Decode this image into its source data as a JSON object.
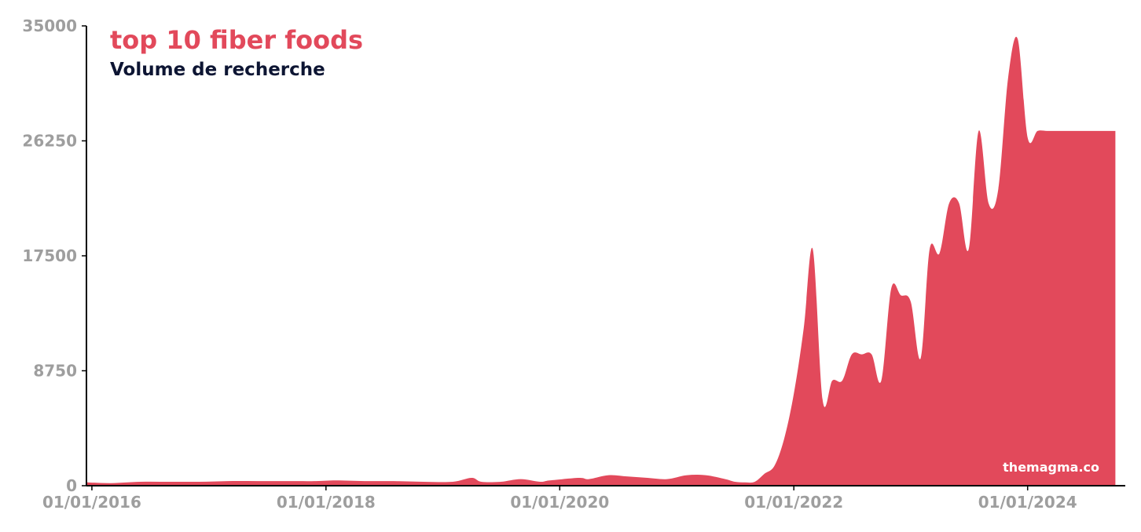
{
  "chart_data": {
    "type": "area",
    "title": "top 10 fiber foods",
    "subtitle": "Volume de recherche",
    "watermark": "themagma.co",
    "xlabel": "",
    "ylabel": "",
    "ylim": [
      0,
      35000
    ],
    "xlim": [
      "2015-12-15",
      "2024-11-01"
    ],
    "y_ticks": [
      {
        "value": 0,
        "label": "0"
      },
      {
        "value": 8750,
        "label": "8750"
      },
      {
        "value": 17500,
        "label": "17500"
      },
      {
        "value": 26250,
        "label": "26250"
      },
      {
        "value": 35000,
        "label": "35000"
      }
    ],
    "x_ticks": [
      {
        "date": "2016-01-01",
        "label": "01/01/2016"
      },
      {
        "date": "2018-01-01",
        "label": "01/01/2018"
      },
      {
        "date": "2020-01-01",
        "label": "01/01/2020"
      },
      {
        "date": "2022-01-01",
        "label": "01/01/2022"
      },
      {
        "date": "2024-01-01",
        "label": "01/01/2024"
      }
    ],
    "grid": false,
    "colors": {
      "area": "#e2495b",
      "title": "#e2495b",
      "subtitle": "#0d1533",
      "axis": "#000000",
      "tick": "#9e9e9e",
      "watermark": "#ffffff"
    },
    "series": [
      {
        "x": [
          "2015-12-15",
          "2016-03-01",
          "2016-06-01",
          "2016-09-01",
          "2016-12-01",
          "2017-03-01",
          "2017-06-01",
          "2017-09-01",
          "2017-12-01",
          "2018-02-01",
          "2018-05-01",
          "2018-08-01",
          "2018-11-01",
          "2019-02-01",
          "2019-04-01",
          "2019-05-01",
          "2019-07-01",
          "2019-09-01",
          "2019-11-01",
          "2019-12-01",
          "2020-03-01",
          "2020-04-01",
          "2020-06-01",
          "2020-08-01",
          "2020-10-01",
          "2020-12-01",
          "2021-02-01",
          "2021-04-01",
          "2021-06-01",
          "2021-07-01",
          "2021-08-01",
          "2021-09-01",
          "2021-10-01",
          "2021-11-01",
          "2021-12-01",
          "2022-01-01",
          "2022-02-01",
          "2022-03-01",
          "2022-04-01",
          "2022-05-01",
          "2022-06-01",
          "2022-07-01",
          "2022-08-01",
          "2022-09-01",
          "2022-10-01",
          "2022-11-01",
          "2022-12-01",
          "2023-01-01",
          "2023-02-01",
          "2023-03-01",
          "2023-04-01",
          "2023-05-01",
          "2023-06-01",
          "2023-07-01",
          "2023-08-01",
          "2023-09-01",
          "2023-10-01",
          "2023-11-01",
          "2023-12-01",
          "2024-01-01",
          "2024-02-01",
          "2024-03-01",
          "2024-04-01",
          "2024-05-01",
          "2024-06-01",
          "2024-07-01",
          "2024-08-01",
          "2024-09-01",
          "2024-10-01"
        ],
        "values": [
          250,
          200,
          300,
          300,
          300,
          350,
          350,
          350,
          350,
          400,
          350,
          350,
          300,
          300,
          600,
          300,
          300,
          500,
          300,
          400,
          600,
          500,
          800,
          700,
          600,
          500,
          800,
          800,
          500,
          300,
          250,
          300,
          900,
          1500,
          3500,
          7000,
          12000,
          18000,
          6500,
          8000,
          8000,
          10000,
          10000,
          10000,
          8000,
          15000,
          14500,
          14000,
          9700,
          18000,
          17700,
          21500,
          21500,
          18000,
          27000,
          21500,
          22500,
          31000,
          34000,
          26500,
          27000,
          27000,
          27000,
          27000,
          27000,
          27000,
          27000,
          27000,
          27000
        ]
      }
    ]
  }
}
